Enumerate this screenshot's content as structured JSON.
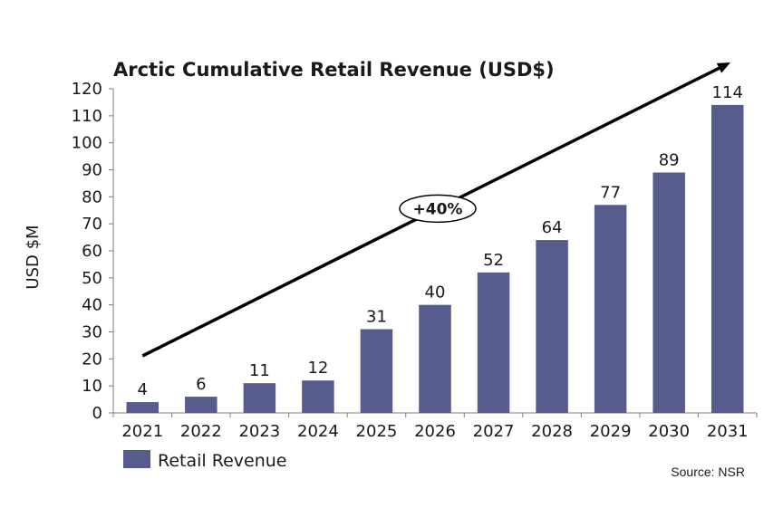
{
  "chart_data": {
    "type": "bar",
    "title": "Arctic Cumulative Retail Revenue (USD$)",
    "ylabel": "USD $M",
    "xlabel": "",
    "categories": [
      "2021",
      "2022",
      "2023",
      "2024",
      "2025",
      "2026",
      "2027",
      "2028",
      "2029",
      "2030",
      "2031"
    ],
    "series": [
      {
        "name": "Retail Revenue",
        "color": "#565c8c",
        "values": [
          4,
          6,
          11,
          12,
          31,
          40,
          52,
          64,
          77,
          89,
          114
        ]
      }
    ],
    "ylim": [
      0,
      120
    ],
    "yticks": [
      0,
      10,
      20,
      30,
      40,
      50,
      60,
      70,
      80,
      90,
      100,
      110,
      120
    ],
    "grid": false,
    "legend": "bottom-left",
    "annotations": [
      {
        "type": "trend-arrow",
        "label": "+40%"
      }
    ],
    "source": "Source: NSR"
  }
}
